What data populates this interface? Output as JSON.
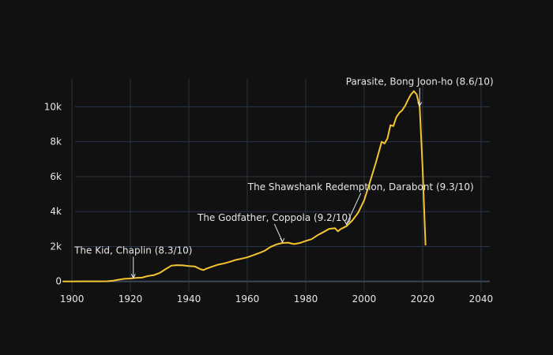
{
  "chart_data": {
    "type": "line",
    "title": "",
    "xlabel": "",
    "ylabel": "",
    "xlim": [
      1897,
      2043
    ],
    "ylim": [
      -600,
      11600
    ],
    "grid": true,
    "legend": "none",
    "colors": {
      "background": "#111111",
      "line": "#f4c430",
      "grid": "#283442",
      "text": "#e6e6e6"
    },
    "x_ticks": [
      1900,
      1920,
      1940,
      1960,
      1980,
      2000,
      2020,
      2040
    ],
    "x_tick_labels": [
      "1900",
      "1920",
      "1940",
      "1960",
      "1980",
      "2000",
      "2020",
      "2040"
    ],
    "y_ticks": [
      0,
      2000,
      4000,
      6000,
      8000,
      10000
    ],
    "y_tick_labels": [
      "0",
      "2k",
      "4k",
      "6k",
      "8k",
      "10k"
    ],
    "series": [
      {
        "x": [
          1897,
          1900,
          1903,
          1906,
          1909,
          1912,
          1914,
          1916,
          1918,
          1920,
          1922,
          1924,
          1926,
          1928,
          1930,
          1932,
          1934,
          1936,
          1938,
          1940,
          1942,
          1944,
          1945,
          1946,
          1948,
          1950,
          1952,
          1954,
          1956,
          1958,
          1960,
          1962,
          1964,
          1966,
          1968,
          1970,
          1972,
          1974,
          1976,
          1978,
          1980,
          1982,
          1984,
          1986,
          1988,
          1990,
          1991,
          1992,
          1994,
          1996,
          1998,
          2000,
          2002,
          2004,
          2006,
          2007,
          2008,
          2009,
          2010,
          2011,
          2012,
          2013,
          2014,
          2015,
          2016,
          2017,
          2018,
          2019,
          2020,
          2021
        ],
        "values": [
          0,
          0,
          5,
          5,
          5,
          10,
          40,
          100,
          150,
          170,
          200,
          220,
          310,
          360,
          480,
          700,
          900,
          930,
          920,
          880,
          860,
          700,
          650,
          730,
          850,
          960,
          1030,
          1120,
          1230,
          1300,
          1380,
          1500,
          1620,
          1760,
          1980,
          2120,
          2200,
          2220,
          2140,
          2200,
          2320,
          2420,
          2640,
          2820,
          3010,
          3050,
          2870,
          3000,
          3170,
          3500,
          3950,
          4650,
          5700,
          6800,
          8000,
          7900,
          8200,
          8950,
          8900,
          9400,
          9650,
          9800,
          10050,
          10400,
          10700,
          10900,
          10700,
          10000,
          6500,
          2100
        ]
      }
    ],
    "annotations": [
      {
        "text": "The Kid, Chaplin (8.3/10)",
        "x": 1921,
        "y": 150
      },
      {
        "text": "The Godfather, Coppola (9.2/10)",
        "x": 1972,
        "y": 2200
      },
      {
        "text": "The Shawshank Redemption, Darabont (9.3/10)",
        "x": 1994,
        "y": 3200
      },
      {
        "text": "Parasite, Bong Joon-ho (8.6/10)",
        "x": 2019,
        "y": 10000
      }
    ]
  }
}
